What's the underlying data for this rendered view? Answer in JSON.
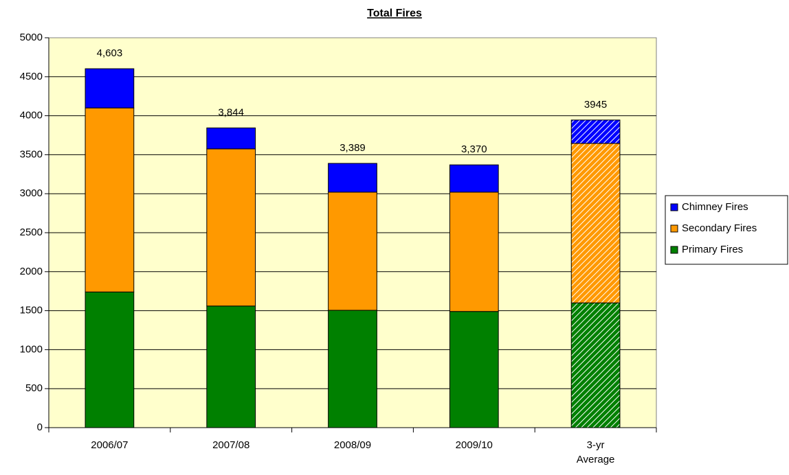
{
  "chart_data": {
    "type": "stacked-bar",
    "title": "Total Fires",
    "categories": [
      "2006/07",
      "2007/08",
      "2008/09",
      "2009/10",
      "3-yr Average"
    ],
    "hatched": [
      false,
      false,
      false,
      false,
      true
    ],
    "series": [
      {
        "name": "Primary Fires",
        "color": "#008000",
        "values": [
          1740,
          1560,
          1505,
          1490,
          1600
        ]
      },
      {
        "name": "Secondary Fires",
        "color": "#ff9900",
        "values": [
          2360,
          2015,
          1515,
          1530,
          2045
        ]
      },
      {
        "name": "Chimney Fires",
        "color": "#0000ff",
        "values": [
          503,
          269,
          369,
          350,
          300
        ]
      }
    ],
    "totals": [
      4603,
      3844,
      3389,
      3370,
      3945
    ],
    "total_labels": [
      "4,603",
      "3,844",
      "3,389",
      "3,370",
      "3945"
    ],
    "ylim": [
      0,
      5000
    ],
    "yticks": [
      0,
      500,
      1000,
      1500,
      2000,
      2500,
      3000,
      3500,
      4000,
      4500,
      5000
    ],
    "grid": true,
    "background": "#ffffcc",
    "legend": "right"
  }
}
